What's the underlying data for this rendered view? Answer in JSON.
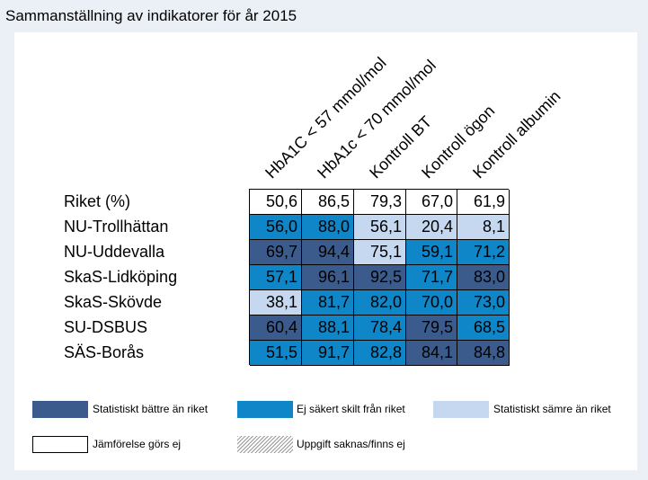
{
  "title": "Sammanställning av indikatorer för år 2015",
  "colors": {
    "better": "#3b5b8d",
    "same": "#0e86c8",
    "worse": "#c5d8ef",
    "nocompare": "#ffffff"
  },
  "chart_data": {
    "type": "table",
    "columns": [
      "HbA1C < 57 mmol/mol",
      "HbA1c < 70 mmol/mol",
      "Kontroll BT",
      "Kontroll ögon",
      "Kontroll albumin"
    ],
    "rows": [
      {
        "label": "Riket (%)",
        "values": [
          "50,6",
          "86,5",
          "79,3",
          "67,0",
          "61,9"
        ],
        "status": [
          "nocompare",
          "nocompare",
          "nocompare",
          "nocompare",
          "nocompare"
        ]
      },
      {
        "label": "NU-Trollhättan",
        "values": [
          "56,0",
          "88,0",
          "56,1",
          "20,4",
          "8,1"
        ],
        "status": [
          "same",
          "same",
          "worse",
          "worse",
          "worse"
        ]
      },
      {
        "label": "NU-Uddevalla",
        "values": [
          "69,7",
          "94,4",
          "75,1",
          "59,1",
          "71,2"
        ],
        "status": [
          "better",
          "better",
          "worse",
          "same",
          "same"
        ]
      },
      {
        "label": "SkaS-Lidköping",
        "values": [
          "57,1",
          "96,1",
          "92,5",
          "71,7",
          "83,0"
        ],
        "status": [
          "same",
          "better",
          "better",
          "same",
          "better"
        ]
      },
      {
        "label": "SkaS-Skövde",
        "values": [
          "38,1",
          "81,7",
          "82,0",
          "70,0",
          "73,0"
        ],
        "status": [
          "worse",
          "same",
          "same",
          "same",
          "same"
        ]
      },
      {
        "label": "SU-DSBUS",
        "values": [
          "60,4",
          "88,1",
          "78,4",
          "79,5",
          "68,5"
        ],
        "status": [
          "better",
          "same",
          "same",
          "better",
          "same"
        ]
      },
      {
        "label": "SÄS-Borås",
        "values": [
          "51,5",
          "91,7",
          "82,8",
          "84,1",
          "84,8"
        ],
        "status": [
          "same",
          "same",
          "same",
          "better",
          "better"
        ]
      }
    ]
  },
  "legend": [
    {
      "label": "Statistiskt bättre än riket",
      "key": "better"
    },
    {
      "label": "Ej säkert skilt från riket",
      "key": "same"
    },
    {
      "label": "Statistiskt sämre än riket",
      "key": "worse"
    },
    {
      "label": "Jämförelse görs ej",
      "key": "nocompare"
    },
    {
      "label": "Uppgift saknas/finns ej",
      "key": "missing"
    }
  ]
}
